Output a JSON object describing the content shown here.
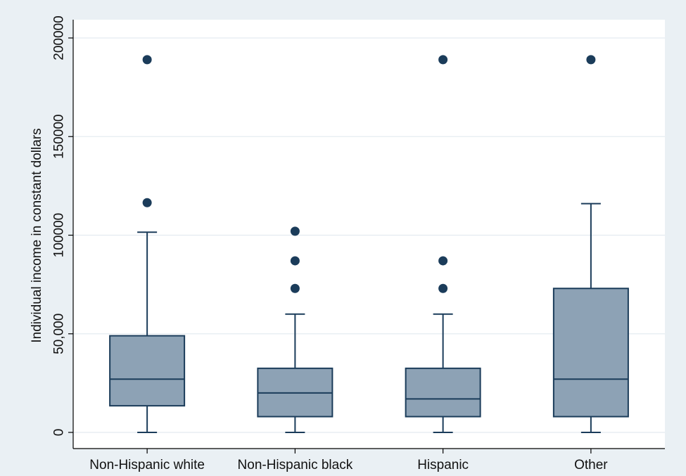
{
  "chart_data": {
    "type": "box",
    "ylabel": "Individual income in constant dollars",
    "xlabel": "",
    "ylim": [
      0,
      200000
    ],
    "y_ticks": [
      {
        "value": 0,
        "label": "0"
      },
      {
        "value": 50000,
        "label": "50,000"
      },
      {
        "value": 100000,
        "label": "100000"
      },
      {
        "value": 150000,
        "label": "150000"
      },
      {
        "value": 200000,
        "label": "200000"
      }
    ],
    "grid": true,
    "categories": [
      "Non-Hispanic white",
      "Non-Hispanic black",
      "Hispanic",
      "Other"
    ],
    "boxes": [
      {
        "whisker_low": 0,
        "q1": 13500,
        "median": 27000,
        "q3": 49000,
        "whisker_high": 101500,
        "outliers": [
          116500,
          189000
        ]
      },
      {
        "whisker_low": 0,
        "q1": 8000,
        "median": 20000,
        "q3": 32500,
        "whisker_high": 60000,
        "outliers": [
          73000,
          87000,
          102000
        ]
      },
      {
        "whisker_low": 0,
        "q1": 8000,
        "median": 17000,
        "q3": 32500,
        "whisker_high": 60000,
        "outliers": [
          73000,
          87000,
          189000
        ]
      },
      {
        "whisker_low": 0,
        "q1": 8000,
        "median": 27000,
        "q3": 73000,
        "whisker_high": 116000,
        "outliers": [
          189000
        ]
      }
    ],
    "colors": {
      "box_fill": "#8da2b5",
      "box_stroke": "#1b3c5a",
      "marker": "#1b3c5a",
      "plot_bg": "#ffffff",
      "outer_bg": "#eaf0f4",
      "grid": "#e4ebf0",
      "axis": "#000000"
    }
  }
}
